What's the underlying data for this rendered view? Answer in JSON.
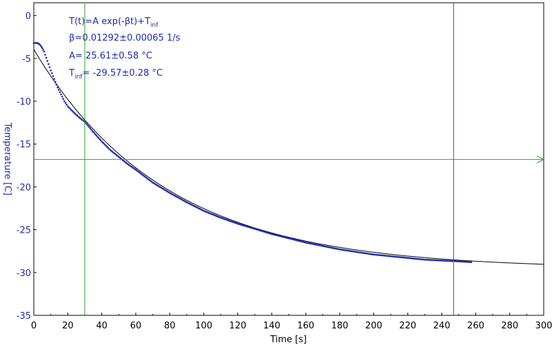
{
  "chart_data": {
    "type": "scatter",
    "title": "",
    "xlabel": "Time [s]",
    "ylabel": "Temperature [C]",
    "xlim": [
      0,
      300
    ],
    "ylim": [
      -35,
      1.5
    ],
    "xticks": [
      0,
      20,
      40,
      60,
      80,
      100,
      120,
      140,
      160,
      180,
      200,
      220,
      240,
      260,
      280,
      300
    ],
    "yticks": [
      0,
      -5,
      -10,
      -15,
      -20,
      -25,
      -30,
      -35
    ],
    "grid": false,
    "fit": {
      "model_label": "T(t)=A exp(-βt)+T",
      "model_sub": "inf",
      "beta_line": "β=0.01292±0.00065 1/s",
      "A_line": "A= 25.61±0.58 °C",
      "Tinf_prefix": "T",
      "Tinf_sub": "inf",
      "Tinf_line": "= -29.57±0.28 °C",
      "A": 25.61,
      "beta": 0.01292,
      "T_inf": -29.57,
      "x_range": [
        0,
        300
      ]
    },
    "series": [
      {
        "x": [
          0,
          1,
          2,
          3,
          4,
          5,
          6,
          8,
          10,
          12,
          14,
          16,
          18,
          20,
          22,
          25,
          28,
          30,
          35,
          40,
          45,
          50,
          55,
          60,
          70,
          80,
          90,
          100,
          110,
          120,
          130,
          140,
          150,
          160,
          170,
          180,
          190,
          200,
          210,
          220,
          230,
          240,
          250,
          258
        ],
        "y": [
          -3.2,
          -3.2,
          -3.2,
          -3.3,
          -3.5,
          -3.8,
          -4.2,
          -5.3,
          -6.4,
          -7.4,
          -8.4,
          -9.2,
          -10.0,
          -10.6,
          -11.0,
          -11.6,
          -12.1,
          -12.4,
          -13.6,
          -14.7,
          -15.7,
          -16.5,
          -17.3,
          -18.0,
          -19.5,
          -20.7,
          -21.8,
          -22.8,
          -23.6,
          -24.3,
          -24.9,
          -25.5,
          -26.0,
          -26.5,
          -26.9,
          -27.3,
          -27.6,
          -27.9,
          -28.1,
          -28.3,
          -28.5,
          -28.6,
          -28.7,
          -28.8
        ],
        "color": "#1f2bb0"
      }
    ],
    "markers": {
      "green_vertical_x": 30,
      "red_vertical_x": 247,
      "green_horizontal_y": -16.8,
      "green_color": "#22aa22",
      "red_color": "#dd2222",
      "fit_color": "#000000"
    }
  }
}
